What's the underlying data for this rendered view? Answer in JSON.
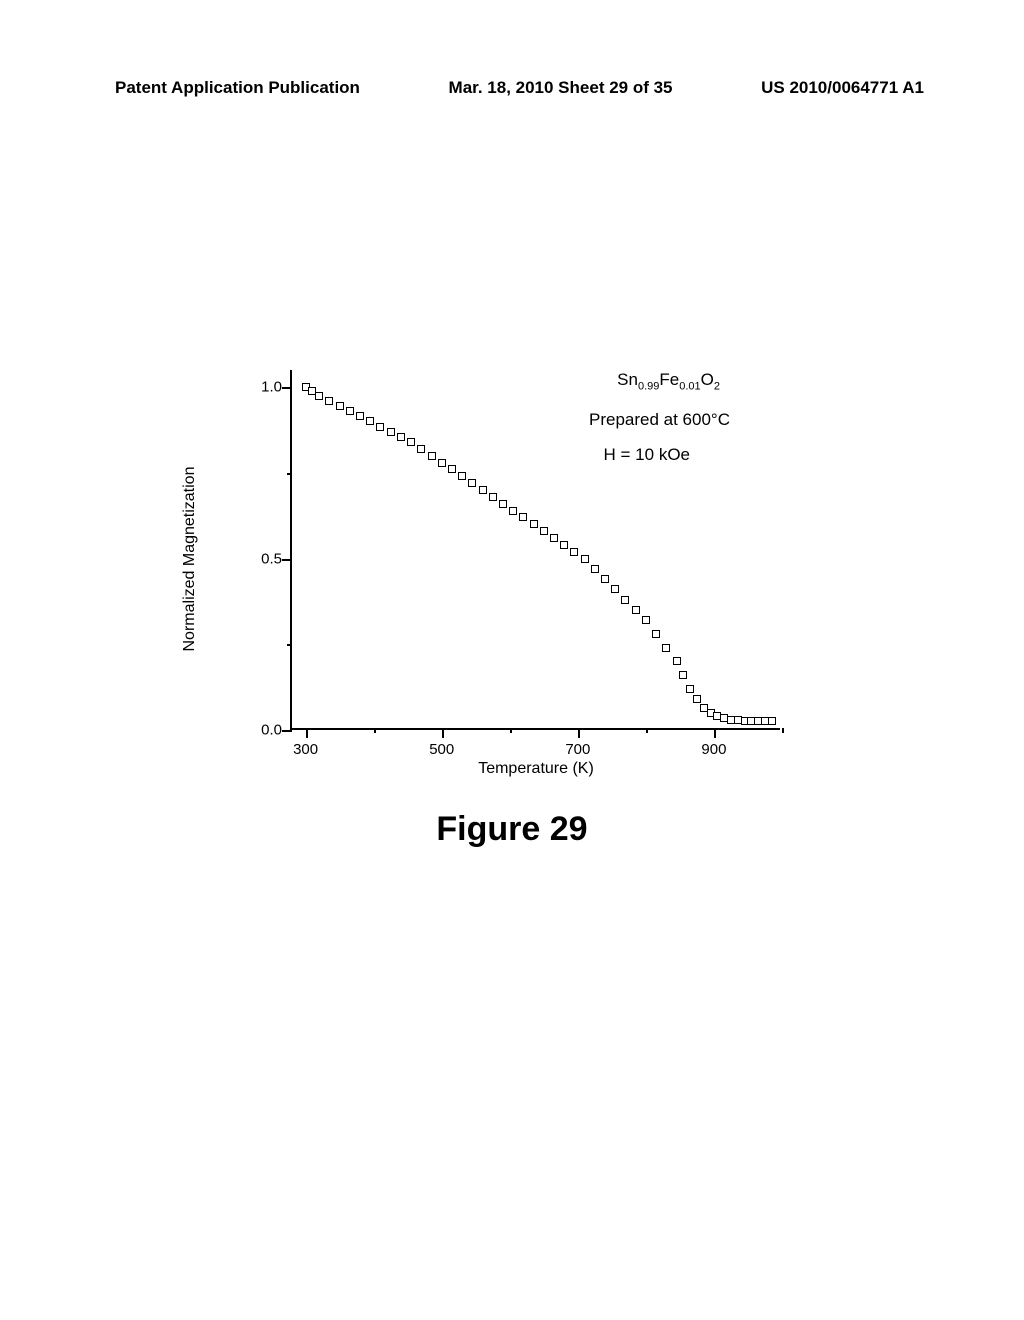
{
  "header": {
    "left": "Patent Application Publication",
    "center": "Mar. 18, 2010  Sheet 29 of 35",
    "right": "US 2010/0064771 A1"
  },
  "chart": {
    "type": "scatter",
    "ylabel": "Normalized Magnetization",
    "xlabel": "Temperature (K)",
    "xlim": [
      280,
      1000
    ],
    "ylim": [
      0,
      1.05
    ],
    "xticks": [
      300,
      500,
      700,
      900
    ],
    "yticks": [
      0.0,
      0.5,
      1.0
    ],
    "ytick_labels": [
      "0.0",
      "0.5",
      "1.0"
    ],
    "xtick_minor": [
      400,
      600,
      800,
      1000
    ],
    "ytick_minor": [
      0.25,
      0.75
    ],
    "annotations": {
      "formula": "Sn₀.₉₉Fe₀.₀₁O₂",
      "prep": "Prepared at 600°C",
      "field": "H = 10 kOe"
    },
    "marker_color_border": "#000000",
    "marker_color_fill": "#ffffff",
    "marker_size": 8,
    "background_color": "#ffffff",
    "data": [
      {
        "x": 300,
        "y": 1.0
      },
      {
        "x": 310,
        "y": 0.99
      },
      {
        "x": 320,
        "y": 0.975
      },
      {
        "x": 335,
        "y": 0.96
      },
      {
        "x": 350,
        "y": 0.945
      },
      {
        "x": 365,
        "y": 0.93
      },
      {
        "x": 380,
        "y": 0.915
      },
      {
        "x": 395,
        "y": 0.9
      },
      {
        "x": 410,
        "y": 0.885
      },
      {
        "x": 425,
        "y": 0.87
      },
      {
        "x": 440,
        "y": 0.855
      },
      {
        "x": 455,
        "y": 0.84
      },
      {
        "x": 470,
        "y": 0.82
      },
      {
        "x": 485,
        "y": 0.8
      },
      {
        "x": 500,
        "y": 0.78
      },
      {
        "x": 515,
        "y": 0.76
      },
      {
        "x": 530,
        "y": 0.74
      },
      {
        "x": 545,
        "y": 0.72
      },
      {
        "x": 560,
        "y": 0.7
      },
      {
        "x": 575,
        "y": 0.68
      },
      {
        "x": 590,
        "y": 0.66
      },
      {
        "x": 605,
        "y": 0.64
      },
      {
        "x": 620,
        "y": 0.62
      },
      {
        "x": 635,
        "y": 0.6
      },
      {
        "x": 650,
        "y": 0.58
      },
      {
        "x": 665,
        "y": 0.56
      },
      {
        "x": 680,
        "y": 0.54
      },
      {
        "x": 695,
        "y": 0.52
      },
      {
        "x": 710,
        "y": 0.5
      },
      {
        "x": 725,
        "y": 0.47
      },
      {
        "x": 740,
        "y": 0.44
      },
      {
        "x": 755,
        "y": 0.41
      },
      {
        "x": 770,
        "y": 0.38
      },
      {
        "x": 785,
        "y": 0.35
      },
      {
        "x": 800,
        "y": 0.32
      },
      {
        "x": 815,
        "y": 0.28
      },
      {
        "x": 830,
        "y": 0.24
      },
      {
        "x": 845,
        "y": 0.2
      },
      {
        "x": 855,
        "y": 0.16
      },
      {
        "x": 865,
        "y": 0.12
      },
      {
        "x": 875,
        "y": 0.09
      },
      {
        "x": 885,
        "y": 0.065
      },
      {
        "x": 895,
        "y": 0.05
      },
      {
        "x": 905,
        "y": 0.04
      },
      {
        "x": 915,
        "y": 0.035
      },
      {
        "x": 925,
        "y": 0.03
      },
      {
        "x": 935,
        "y": 0.028
      },
      {
        "x": 945,
        "y": 0.027
      },
      {
        "x": 955,
        "y": 0.026
      },
      {
        "x": 965,
        "y": 0.025
      },
      {
        "x": 975,
        "y": 0.025
      },
      {
        "x": 985,
        "y": 0.026
      }
    ]
  },
  "caption": "Figure 29"
}
